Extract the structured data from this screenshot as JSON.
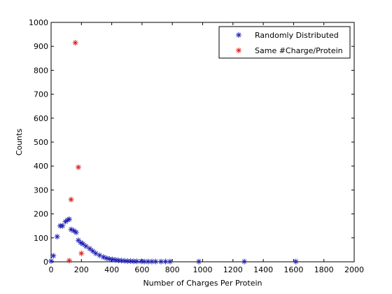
{
  "chart_data": {
    "type": "scatter",
    "title": "",
    "xlabel": "Number of Charges Per Protein",
    "ylabel": "Counts",
    "xlim": [
      0,
      2000
    ],
    "ylim": [
      0,
      1000
    ],
    "xticks": [
      "0",
      "200",
      "400",
      "600",
      "800",
      "1000",
      "1200",
      "1400",
      "1600",
      "1800",
      "2000"
    ],
    "yticks": [
      "0",
      "100",
      "200",
      "300",
      "400",
      "500",
      "600",
      "700",
      "800",
      "900",
      "1000"
    ],
    "grid": false,
    "legend_position": "top-right",
    "marker": "asterisk",
    "series": [
      {
        "name": "Randomly Distributed",
        "color": "#1f1fb4",
        "points": [
          [
            0,
            3
          ],
          [
            15,
            25
          ],
          [
            40,
            105
          ],
          [
            60,
            150
          ],
          [
            75,
            150
          ],
          [
            95,
            168
          ],
          [
            110,
            175
          ],
          [
            120,
            178
          ],
          [
            132,
            135
          ],
          [
            150,
            130
          ],
          [
            165,
            123
          ],
          [
            180,
            90
          ],
          [
            195,
            80
          ],
          [
            210,
            75
          ],
          [
            230,
            65
          ],
          [
            255,
            55
          ],
          [
            275,
            45
          ],
          [
            295,
            35
          ],
          [
            320,
            27
          ],
          [
            345,
            20
          ],
          [
            365,
            15
          ],
          [
            385,
            12
          ],
          [
            405,
            10
          ],
          [
            425,
            8
          ],
          [
            445,
            6
          ],
          [
            465,
            5
          ],
          [
            485,
            4
          ],
          [
            505,
            3
          ],
          [
            525,
            3
          ],
          [
            545,
            2
          ],
          [
            565,
            2
          ],
          [
            595,
            2
          ],
          [
            615,
            1
          ],
          [
            640,
            1
          ],
          [
            665,
            1
          ],
          [
            690,
            1
          ],
          [
            725,
            1
          ],
          [
            755,
            1
          ],
          [
            785,
            1
          ],
          [
            975,
            1
          ],
          [
            1275,
            1
          ],
          [
            1615,
            1
          ]
        ]
      },
      {
        "name": "Same #Charge/Protein",
        "color": "#e01e1e",
        "points": [
          [
            120,
            5
          ],
          [
            132,
            260
          ],
          [
            160,
            915
          ],
          [
            180,
            395
          ],
          [
            200,
            35
          ]
        ]
      }
    ]
  }
}
